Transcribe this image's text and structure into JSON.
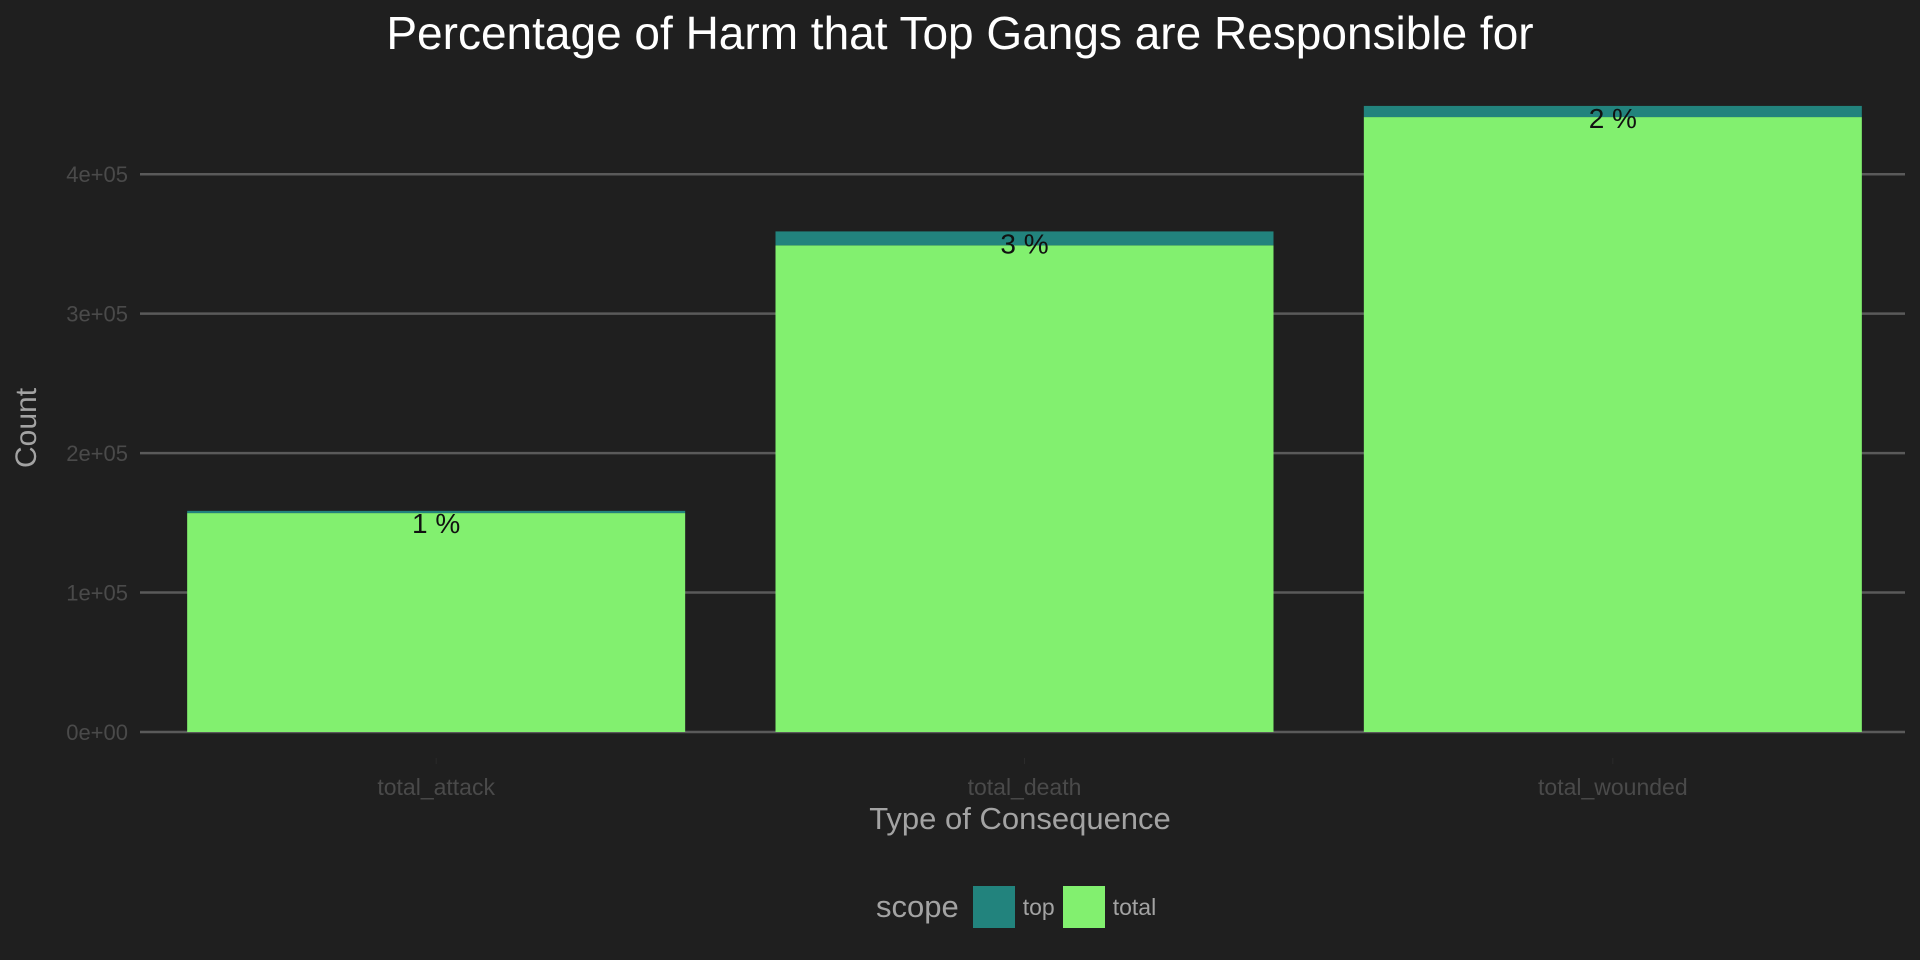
{
  "colors": {
    "background": "#1f1f1f",
    "top": "#22837d",
    "total": "#82f06f",
    "grid": "#5a5a5a",
    "title": "#ffffff",
    "axis_text": "#4a4a4a",
    "axis_title": "#a3a3a3",
    "bar_label": "#111111"
  },
  "chart_data": {
    "type": "bar",
    "stacked": true,
    "title": "Percentage of Harm that Top Gangs are Responsible for",
    "xlabel": "Type of Consequence",
    "ylabel": "Count",
    "categories": [
      "total_attack",
      "total_death",
      "total_wounded"
    ],
    "series": [
      {
        "name": "total",
        "values": [
          157000,
          349000,
          441000
        ]
      },
      {
        "name": "top",
        "values": [
          1600,
          10000,
          8000
        ]
      }
    ],
    "bar_labels": [
      "1 %",
      "3 %",
      "2 %"
    ],
    "ylim": [
      0,
      450000
    ],
    "yticks": [
      0,
      100000,
      200000,
      300000,
      400000
    ],
    "ytick_labels": [
      "0e+00",
      "1e+05",
      "2e+05",
      "3e+05",
      "4e+05"
    ],
    "grid": true,
    "legend": {
      "title": "scope",
      "position": "bottom",
      "entries": [
        "top",
        "total"
      ]
    }
  }
}
